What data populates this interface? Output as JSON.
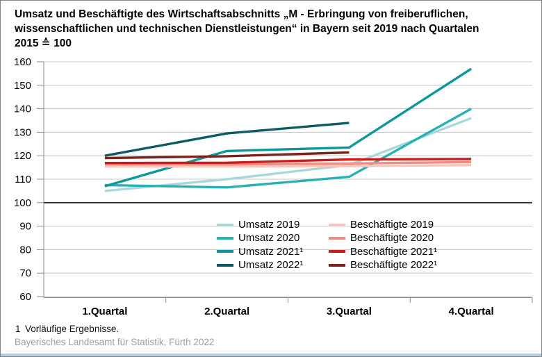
{
  "title_lines": [
    "Umsatz und Beschäftigte des Wirtschaftsabschnitts „M - Erbringung von freiberuflichen,",
    "wissenschaftlichen und technischen Dienstleistungen“ in Bayern seit 2019 nach Quartalen",
    "2015 ≙ 100"
  ],
  "chart_data": {
    "type": "line",
    "categories": [
      "1.Quartal",
      "2.Quartal",
      "3.Quartal",
      "4.Quartal"
    ],
    "series": [
      {
        "name": "Umsatz 2019",
        "color": "#a9d8da",
        "values": [
          105,
          110,
          116,
          136
        ]
      },
      {
        "name": "Umsatz 2020",
        "color": "#27b1b5",
        "values": [
          107.5,
          106.5,
          111,
          140
        ]
      },
      {
        "name": "Umsatz 2021¹",
        "color": "#0c979c",
        "values": [
          107,
          122,
          123.5,
          157
        ]
      },
      {
        "name": "Umsatz 2022¹",
        "color": "#0f5b64",
        "values": [
          120,
          129.5,
          134,
          null
        ]
      },
      {
        "name": "Beschäftigte 2019",
        "color": "#f7c5bd",
        "values": [
          115.4,
          115.4,
          115.6,
          116
        ]
      },
      {
        "name": "Beschäftigte 2020",
        "color": "#f08d7e",
        "values": [
          116.3,
          116.3,
          116.7,
          117.3
        ]
      },
      {
        "name": "Beschäftigte 2021¹",
        "color": "#cb1a1a",
        "values": [
          116.9,
          117,
          118.4,
          118.6
        ]
      },
      {
        "name": "Beschäftigte 2022¹",
        "color": "#78231c",
        "values": [
          119,
          119.8,
          121.4,
          null
        ]
      }
    ],
    "ylim": [
      60,
      160
    ],
    "ytick_step": 10,
    "baseline": 100,
    "grid": true,
    "legend_position": "inside-center-right",
    "colors": {
      "gridline": "#c9c9c9",
      "baseline": "#2e2e2e",
      "axis": "#8a8a8a"
    }
  },
  "footnote": {
    "marker": "1",
    "text": "Vorläufige Ergebnisse."
  },
  "source": "Bayerisches Landesamt für Statistik, Fürth 2022"
}
